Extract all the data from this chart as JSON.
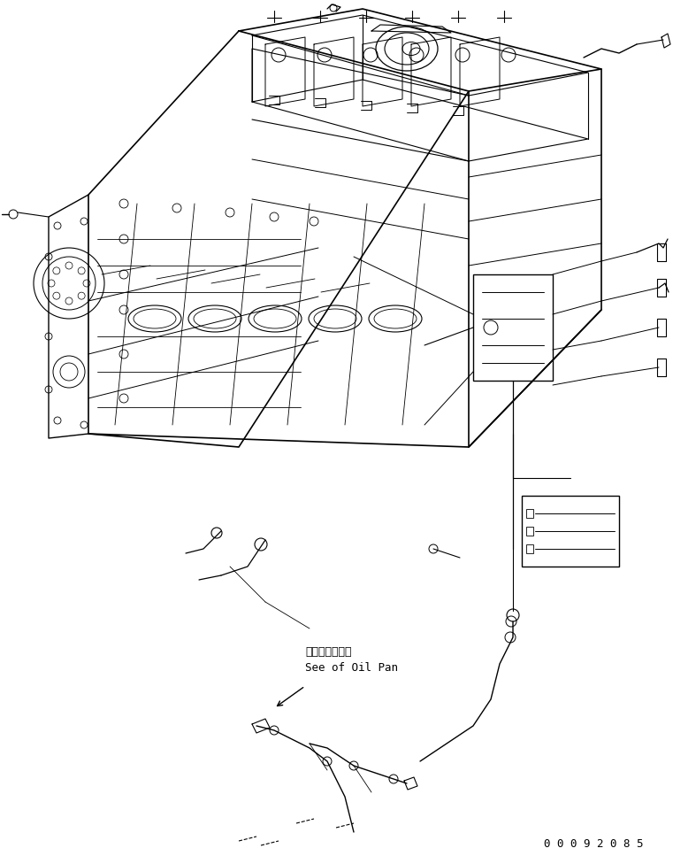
{
  "background_color": "#ffffff",
  "line_color": "#000000",
  "text_color": "#000000",
  "annotation_text_jp": "オイルパン参照",
  "annotation_text_en": "See of Oil Pan",
  "part_number": "0 0 0 9 2 0 8 5",
  "fig_width": 7.61,
  "fig_height": 9.67,
  "dpi": 100
}
